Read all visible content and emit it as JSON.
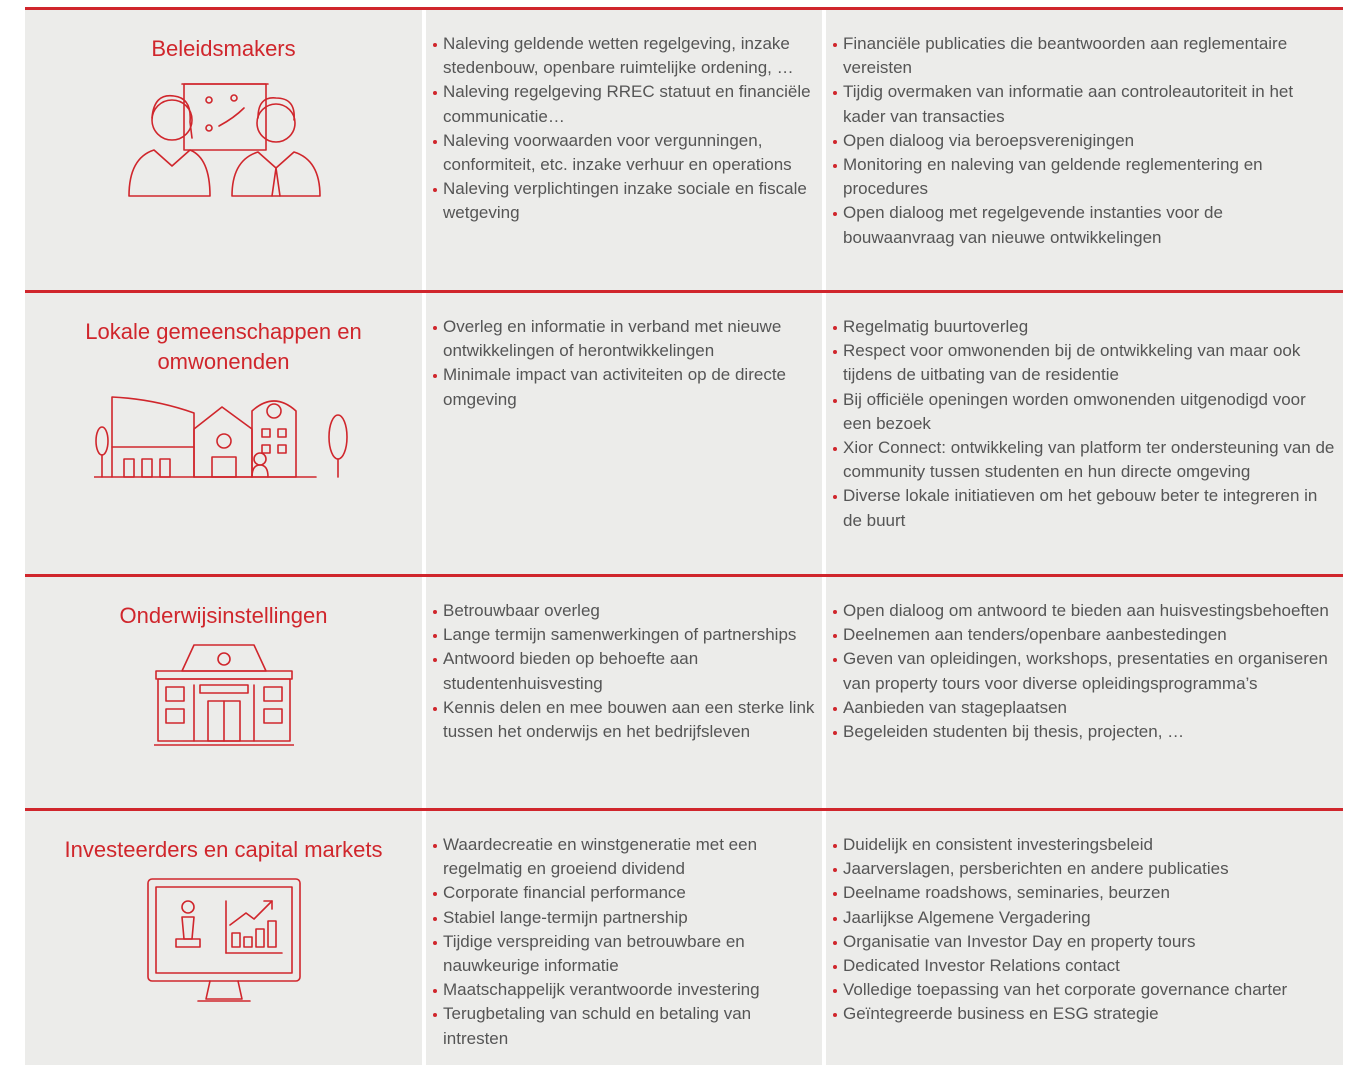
{
  "rows": [
    {
      "title": "Beleidsmakers",
      "col1": [
        "Naleving geldende wetten regelgeving, inzake stedenbouw, openbare ruimtelijke ordening, …",
        "Naleving regelgeving RREC statuut en financiële communicatie…",
        "Naleving voorwaarden voor vergunningen, conformiteit, etc. inzake verhuur en operations",
        "Naleving verplichtingen inzake sociale en fiscale wetgeving"
      ],
      "col2": [
        "Financiële publicaties die beantwoorden aan reglementaire vereisten",
        "Tijdig overmaken van informatie aan controleautoriteit in het kader van transacties",
        "Open dialoog via beroepsverenigingen",
        "Monitoring en naleving van geldende reglementering en procedures",
        "Open dialoog met regelgevende instanties voor de bouwaanvraag van nieuwe ontwikkelingen"
      ]
    },
    {
      "title": "Lokale gemeenschappen en omwonenden",
      "col1": [
        "Overleg en informatie in verband met nieuwe ontwikkelingen of herontwikkelingen",
        "Minimale impact van activiteiten op de directe omgeving"
      ],
      "col2": [
        "Regelmatig buurtoverleg",
        "Respect voor omwonenden bij de ontwikkeling van maar ook tijdens de uitbating van de residentie",
        "Bij officiële openingen worden omwonenden uitgenodigd voor een bezoek",
        "Xior Connect: ontwikkeling van platform ter ondersteuning van de community tussen studenten en hun directe omgeving",
        "Diverse lokale initiatieven om het gebouw beter te integreren in de buurt"
      ]
    },
    {
      "title": "Onderwijsinstellingen",
      "col1": [
        "Betrouwbaar overleg",
        "Lange termijn samenwerkingen of partnerships",
        "Antwoord bieden op behoefte aan studentenhuisvesting",
        "Kennis delen en mee bouwen aan een sterke link tussen het onderwijs en het bedrijfsleven"
      ],
      "col2": [
        "Open dialoog om antwoord te bieden aan huisvestingsbehoeften",
        "Deelnemen aan tenders/openbare aanbestedingen",
        "Geven van opleidingen, workshops, presentaties en organiseren van property tours voor diverse opleidingsprogramma’s",
        "Aanbieden van stageplaatsen",
        "Begeleiden studenten bij thesis, projecten, …"
      ]
    },
    {
      "title": "Investeerders en capital markets",
      "col1": [
        "Waardecreatie en winstgeneratie met een regelmatig en groeiend dividend",
        "Corporate financial performance",
        "Stabiel lange-termijn partnership",
        "Tijdige verspreiding van betrouwbare en nauwkeurige informatie",
        "Maatschappelijk verantwoorde investering",
        "Terugbetaling van schuld en betaling van intresten"
      ],
      "col2": [
        "Duidelijk en consistent investeringsbeleid",
        "Jaarverslagen, persberichten en andere publicaties",
        "Deelname roadshows, seminaries, beurzen",
        "Jaarlijkse Algemene Vergadering",
        "Organisatie van Investor Day en property tours",
        "Dedicated Investor Relations contact",
        "Volledige toepassing van het corporate governance charter",
        "Geïntegreerde business en ESG strategie"
      ]
    }
  ]
}
